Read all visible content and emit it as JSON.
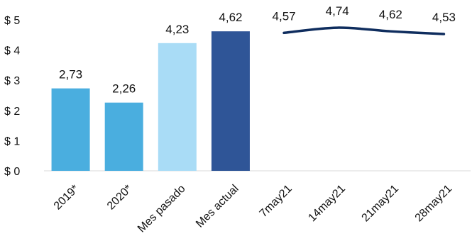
{
  "chart_data": {
    "type": "bar",
    "categories": [
      "2019*",
      "2020*",
      "Mes pasado",
      "Mes actual",
      "7may21",
      "14may21",
      "21may21",
      "28may21"
    ],
    "bars": [
      {
        "category": "2019*",
        "value": 2.73,
        "label": "2,73",
        "color": "#4aaedf"
      },
      {
        "category": "2020*",
        "value": 2.26,
        "label": "2,26",
        "color": "#4aaedf"
      },
      {
        "category": "Mes pasado",
        "value": 4.23,
        "label": "4,23",
        "color": "#a9dcf6"
      },
      {
        "category": "Mes actual",
        "value": 4.62,
        "label": "4,62",
        "color": "#2f5597"
      }
    ],
    "line": {
      "color": "#0f2d5e",
      "points": [
        {
          "category": "7may21",
          "value": 4.57,
          "label": "4,57"
        },
        {
          "category": "14may21",
          "value": 4.74,
          "label": "4,74"
        },
        {
          "category": "21may21",
          "value": 4.62,
          "label": "4,62"
        },
        {
          "category": "28may21",
          "value": 4.53,
          "label": "4,53"
        }
      ]
    },
    "yticks": [
      "$ 0",
      "$ 1",
      "$ 2",
      "$ 3",
      "$ 4",
      "$ 5"
    ],
    "ylim": [
      0,
      5
    ],
    "grid": false,
    "legend": "none"
  }
}
